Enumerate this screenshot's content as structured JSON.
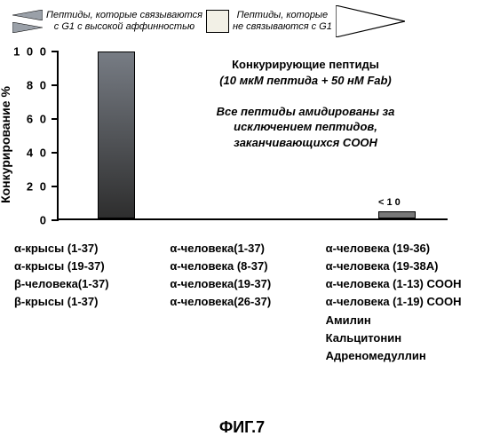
{
  "legend": {
    "left_text_l1": "Пептиды, которые связываются",
    "left_text_l2": "с G1 с высокой аффинностью",
    "right_text_l1": "Пептиды, которые",
    "right_text_l2": "не связываются с G1",
    "small_tri_fill": "#9aa0a8",
    "square_fill": "#f2f0e6"
  },
  "chart": {
    "ylabel": "Конкурирование %",
    "ylim": [
      0,
      100
    ],
    "ytick_step": 20,
    "yticks": [
      0,
      20,
      40,
      60,
      80,
      100
    ],
    "ytick_labels": [
      "0",
      "2 0",
      "4 0",
      "6 0",
      "8 0",
      "1 0 0"
    ],
    "bar1_value": 100,
    "bar2_value": 4,
    "bar_gradient_top": "#777c84",
    "bar_gradient_bottom": "#2e2e2e",
    "lt10_label": "< 1 0"
  },
  "annotation": {
    "l1": "Конкурирующие пептиды",
    "l2": "(10 мкМ пептида + 50 нМ Fab)",
    "l3": "Все пептиды амидированы за",
    "l4": "исключением пептидов,",
    "l5": "заканчивающихся СООН"
  },
  "columns": {
    "c1": [
      "α-крысы (1-37)",
      "α-крысы (19-37)",
      "β-человека(1-37)",
      "β-крысы (1-37)"
    ],
    "c2": [
      "α-человека(1-37)",
      "α-человека (8-37)",
      "α-человека(19-37)",
      "α-человека(26-37)"
    ],
    "c3": [
      "α-человека (19-36)",
      "α-человека (19-38A)",
      "α-человека (1-13) COOH",
      "α-человека (1-19) COOH",
      "Амилин",
      "Кальцитонин",
      "Адреномедуллин"
    ]
  },
  "figure_label": "ФИГ.7"
}
